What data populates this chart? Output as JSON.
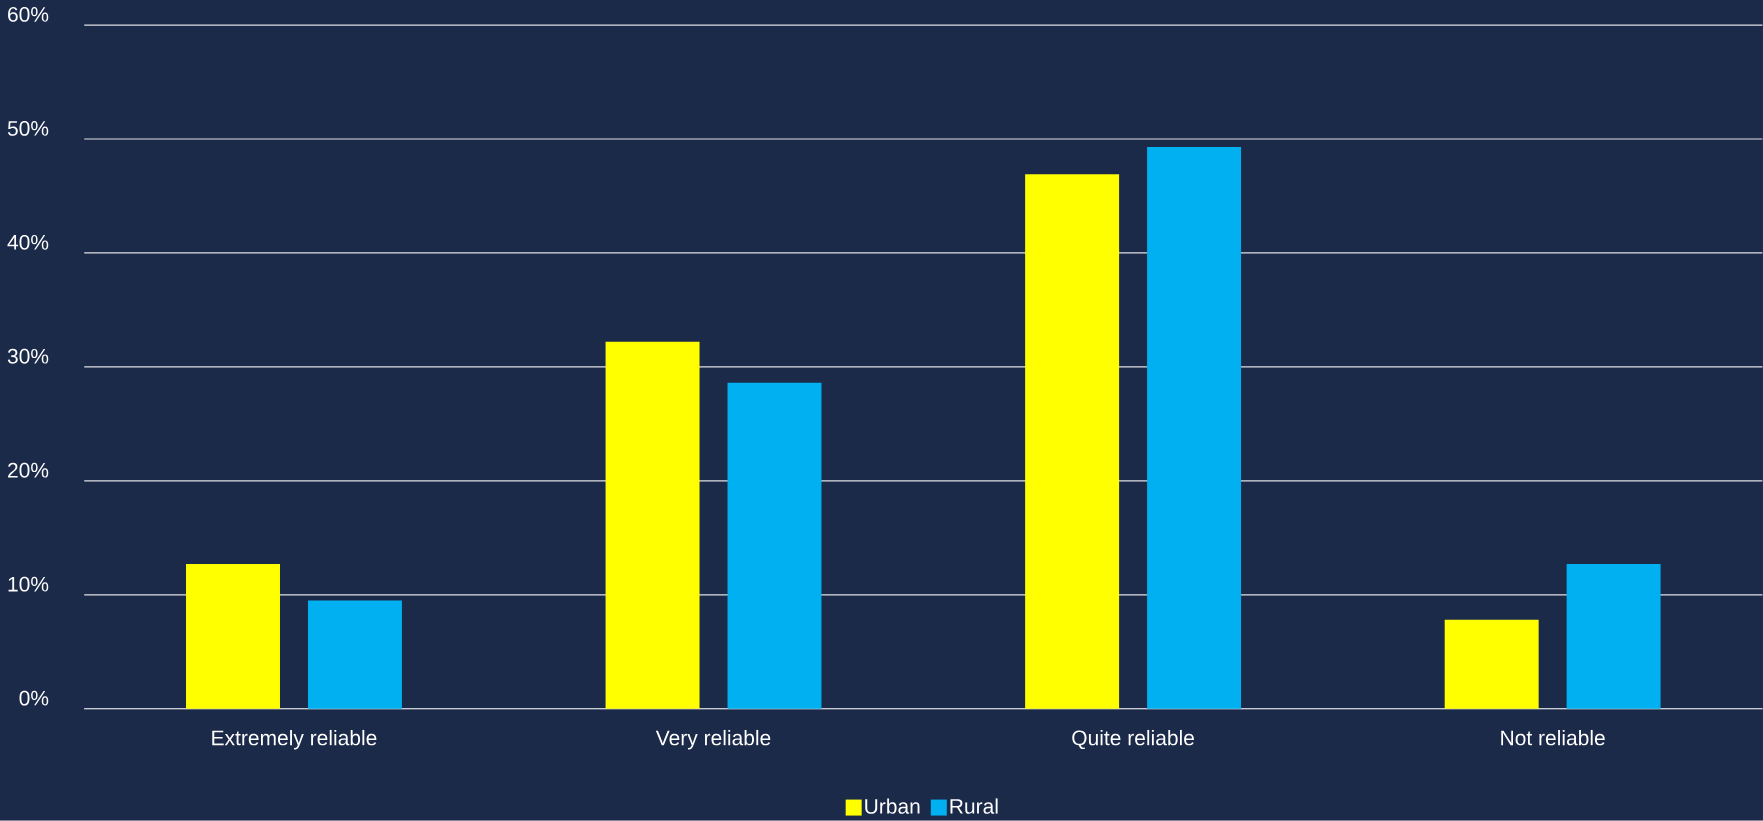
{
  "chart_data": {
    "type": "bar",
    "categories": [
      "Extremely reliable",
      "Very reliable",
      "Quite reliable",
      "Not reliable"
    ],
    "series": [
      {
        "name": "Urban",
        "color": "#ffff00",
        "values": [
          12.7,
          32.2,
          46.9,
          7.8
        ]
      },
      {
        "name": "Rural",
        "color": "#00b0f0",
        "values": [
          9.5,
          28.6,
          49.3,
          12.7
        ]
      }
    ],
    "ylim": [
      0,
      60
    ],
    "yticks": [
      {
        "value": 0,
        "label": "0%"
      },
      {
        "value": 10,
        "label": "10%"
      },
      {
        "value": 20,
        "label": "20%"
      },
      {
        "value": 30,
        "label": "30%"
      },
      {
        "value": 40,
        "label": "40%"
      },
      {
        "value": 50,
        "label": "50%"
      },
      {
        "value": 60,
        "label": "60%"
      }
    ],
    "grid": "y",
    "legend": "bottom"
  }
}
